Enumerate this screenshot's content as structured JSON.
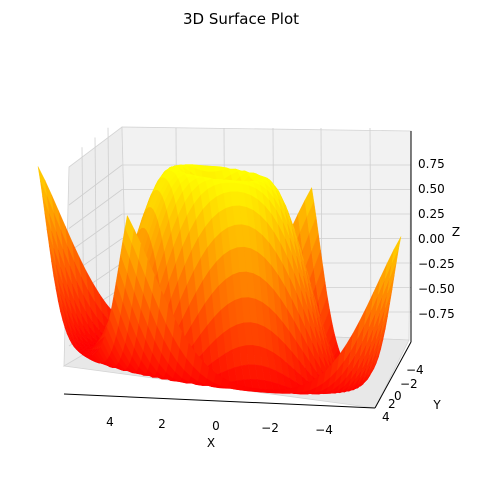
{
  "chart_data": {
    "type": "surface",
    "title": "3D Surface Plot",
    "xlabel": "X",
    "ylabel": "Y",
    "zlabel": "Z",
    "function": "sin(sqrt(x^2 + y^2))",
    "x_range": [
      -5,
      5
    ],
    "y_range": [
      -5,
      5
    ],
    "z_range": [
      -1,
      1
    ],
    "x_ticks": [
      "4",
      "2",
      "0",
      "−2",
      "−4"
    ],
    "y_ticks": [
      "−4",
      "−2",
      "0",
      "2",
      "4"
    ],
    "z_ticks": [
      "0.75",
      "0.50",
      "0.25",
      "0.00",
      "−0.25",
      "−0.50",
      "−0.75"
    ],
    "colormap": "autumn",
    "colors": {
      "low": "#ff0000",
      "high": "#ffff00"
    },
    "grid": true
  }
}
